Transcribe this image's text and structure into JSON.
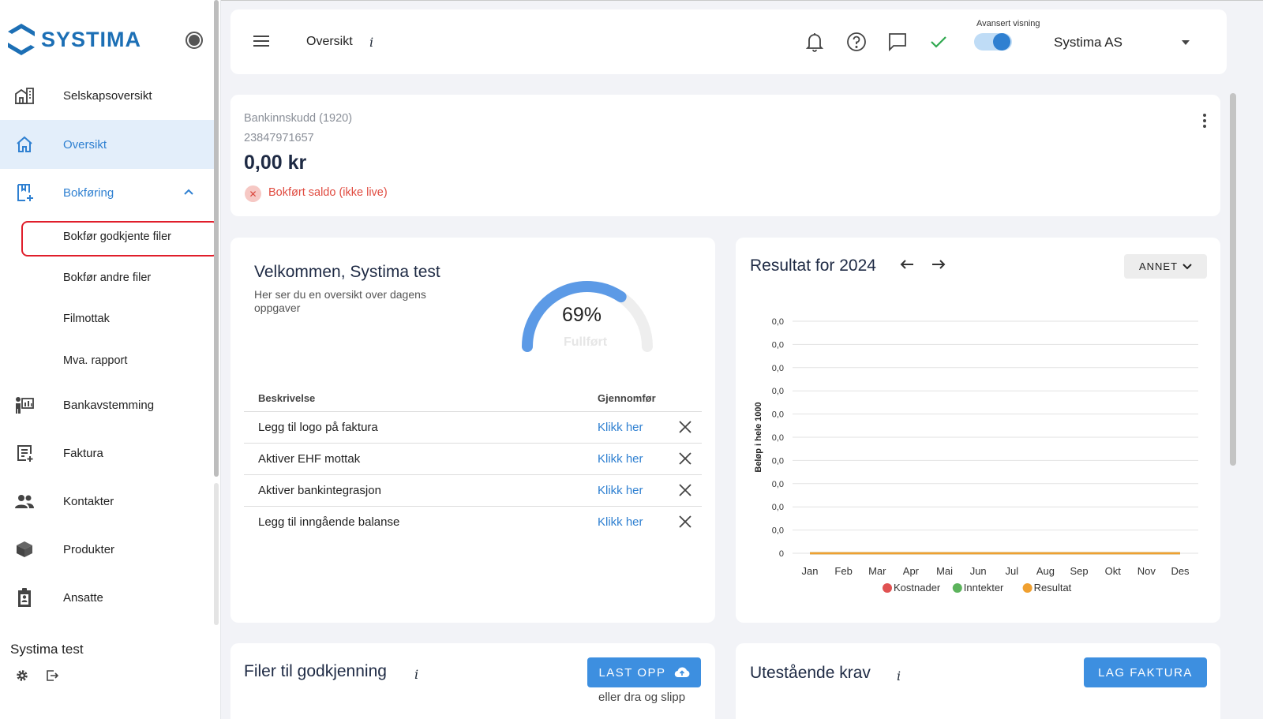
{
  "sidebar": {
    "logo": "SYSTIMA",
    "items": [
      {
        "label": "Selskapsoversikt",
        "icon": "building-icon"
      },
      {
        "label": "Oversikt",
        "icon": "home-icon"
      },
      {
        "label": "Bokføring",
        "icon": "bookkeeping-icon"
      },
      {
        "label": "Bankavstemming",
        "icon": "bank-reconcile-icon"
      },
      {
        "label": "Faktura",
        "icon": "invoice-icon"
      },
      {
        "label": "Kontakter",
        "icon": "contacts-icon"
      },
      {
        "label": "Produkter",
        "icon": "box-icon"
      },
      {
        "label": "Ansatte",
        "icon": "employee-badge-icon"
      }
    ],
    "subitems": [
      "Bokfør godkjente filer",
      "Bokfør andre filer",
      "Filmottak",
      "Mva. rapport"
    ],
    "user_name": "Systima test"
  },
  "topbar": {
    "title": "Oversikt",
    "info": "i",
    "advanced_label": "Avansert visning",
    "advanced_on": true,
    "company": "Systima AS"
  },
  "bank": {
    "account_name": "Bankinnskudd (1920)",
    "account_number": "23847971657",
    "amount": "0,00 kr",
    "status": "Bokført saldo (ikke live)"
  },
  "welcome": {
    "title": "Velkommen, Systima test",
    "subtitle": "Her ser du en oversikt over dagens oppgaver",
    "progress_value": "69%",
    "progress_fraction": 0.69,
    "progress_label": "Fullført",
    "col_desc": "Beskrivelse",
    "col_action": "Gjennomfør",
    "tasks": [
      {
        "desc": "Legg til logo på faktura",
        "link": "Klikk her"
      },
      {
        "desc": "Aktiver EHF mottak",
        "link": "Klikk her"
      },
      {
        "desc": "Aktiver bankintegrasjon",
        "link": "Klikk her"
      },
      {
        "desc": "Legg til inngående balanse",
        "link": "Klikk her"
      }
    ]
  },
  "result": {
    "title": "Resultat for 2024",
    "filter": "ANNET"
  },
  "chart_data": {
    "type": "line",
    "title": "Resultat for 2024",
    "ylabel": "Beløp i hele 1000",
    "xlabel": "",
    "categories": [
      "Jan",
      "Feb",
      "Mar",
      "Apr",
      "Mai",
      "Jun",
      "Jul",
      "Aug",
      "Sep",
      "Okt",
      "Nov",
      "Des"
    ],
    "y_tick_labels": [
      "0",
      "0,0",
      "0,0",
      "0,0",
      "0,0",
      "0,0",
      "0,0",
      "0,0",
      "0,0",
      "0,0",
      "0,0"
    ],
    "series": [
      {
        "name": "Kostnader",
        "color": "#e05252",
        "values": [
          0,
          0,
          0,
          0,
          0,
          0,
          0,
          0,
          0,
          0,
          0,
          0
        ]
      },
      {
        "name": "Inntekter",
        "color": "#5cb35c",
        "values": [
          0,
          0,
          0,
          0,
          0,
          0,
          0,
          0,
          0,
          0,
          0,
          0
        ]
      },
      {
        "name": "Resultat",
        "color": "#f0a030",
        "values": [
          0,
          0,
          0,
          0,
          0,
          0,
          0,
          0,
          0,
          0,
          0,
          0
        ]
      }
    ],
    "legend": "bottom",
    "grid": true
  },
  "files": {
    "title": "Filer til godkjenning",
    "info": "i",
    "upload_label": "LAST OPP",
    "drop_hint": "eller dra og slipp"
  },
  "krav": {
    "title": "Utestående krav",
    "info": "i",
    "button_label": "LAG FAKTURA"
  },
  "colors": {
    "accent": "#2f80d1",
    "highlight": "#e01e2b",
    "active_bg": "#e3eefa"
  }
}
